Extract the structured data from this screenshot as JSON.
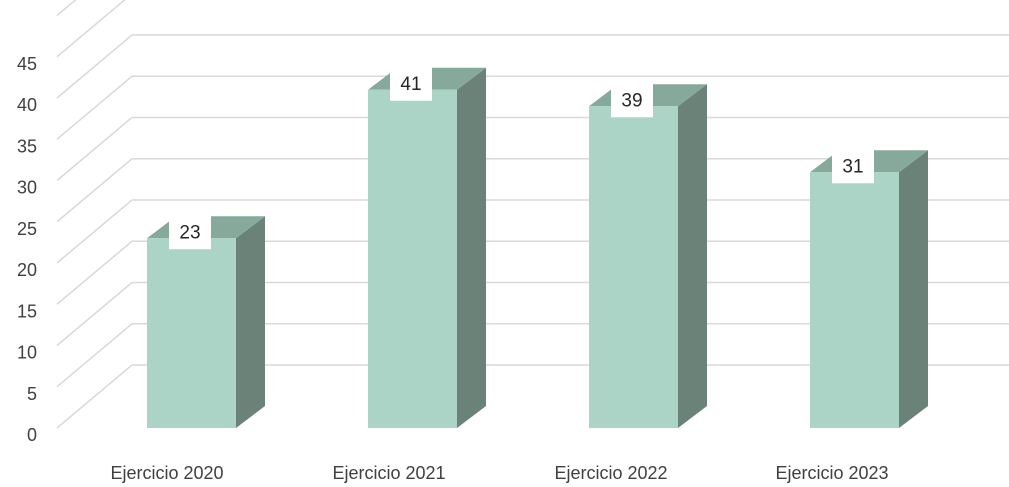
{
  "chart_data": {
    "type": "bar",
    "variant": "3d-column",
    "categories": [
      "Ejercicio 2020",
      "Ejercicio 2021",
      "Ejercicio 2022",
      "Ejercicio 2023"
    ],
    "values": [
      23,
      41,
      39,
      31
    ],
    "data_labels": [
      "23",
      "41",
      "39",
      "31"
    ],
    "title": "",
    "xlabel": "",
    "ylabel": "",
    "ylim": [
      0,
      50
    ],
    "yticks": [
      0,
      5,
      10,
      15,
      20,
      25,
      30,
      35,
      40,
      45
    ],
    "ytick_labels": [
      "0",
      "5",
      "10",
      "15",
      "20",
      "25",
      "30",
      "35",
      "40",
      "45"
    ],
    "grid": true,
    "legend": "none",
    "colors": {
      "bar_front": "#abd3c6",
      "bar_side": "#6b8279",
      "bar_top": "#86a99c",
      "grid": "#d9d9d9",
      "label_box": "#ffffff"
    }
  }
}
